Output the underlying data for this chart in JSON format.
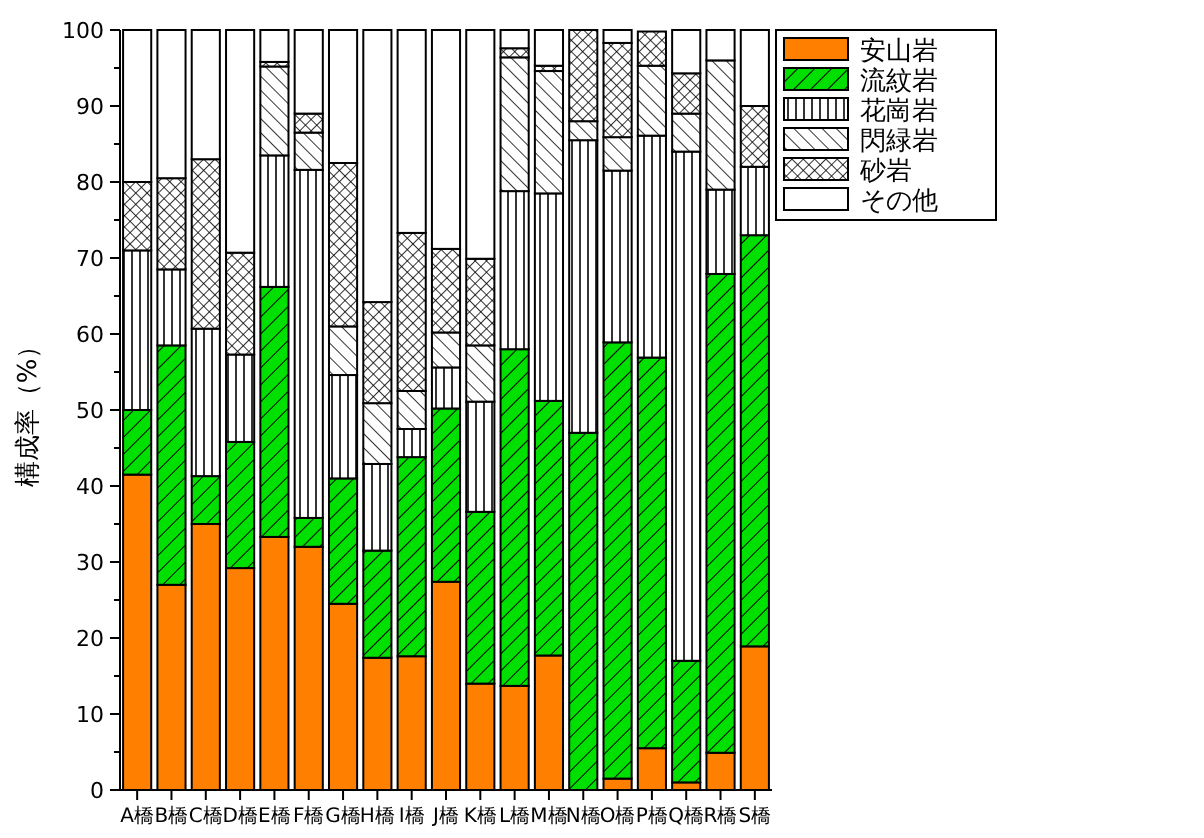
{
  "chart_data": {
    "type": "bar",
    "stacked": true,
    "ylabel": "構成率（%）",
    "categories": [
      "A橋",
      "B橋",
      "C橋",
      "D橋",
      "E橋",
      "F橋",
      "G橋",
      "H橋",
      "I橋",
      "J橋",
      "K橋",
      "L橋",
      "M橋",
      "N橋",
      "O橋",
      "P橋",
      "Q橋",
      "R橋",
      "S橋"
    ],
    "ylim": [
      0,
      100
    ],
    "yticks": [
      0,
      {
        "value": 5,
        "label": null
      },
      10,
      {
        "value": 15,
        "label": null
      },
      20,
      {
        "value": 25,
        "label": null
      },
      30,
      {
        "value": 35,
        "label": null
      },
      40,
      {
        "value": 45,
        "label": null
      },
      50,
      {
        "value": 55,
        "label": null
      },
      60,
      {
        "value": 65,
        "label": null
      },
      70,
      {
        "value": 75,
        "label": null
      },
      80,
      {
        "value": 85,
        "label": null
      },
      90,
      {
        "value": 95,
        "label": null
      },
      100
    ],
    "legend": "top right",
    "grid": false,
    "series": [
      {
        "name": "安山岩",
        "color": "#ff8000",
        "values": [
          41.5,
          27,
          35,
          29.2,
          33.3,
          32,
          24.5,
          17.4,
          17.6,
          27.4,
          14,
          13.7,
          17.7,
          0,
          1.5,
          5.5,
          1,
          4.9,
          18.9
        ]
      },
      {
        "name": "流紋岩",
        "color": "#00e000",
        "values": [
          8.5,
          31.5,
          6.3,
          16.6,
          32.9,
          3.8,
          16.5,
          14.1,
          26.2,
          22.8,
          22.6,
          44.3,
          33.5,
          47,
          57.4,
          51.4,
          16,
          63,
          54.1
        ]
      },
      {
        "name": "花崗岩",
        "color": "#ffffff",
        "values": [
          21,
          10,
          19.4,
          11.5,
          17.3,
          45.8,
          13.6,
          11.4,
          3.7,
          5.4,
          14.5,
          20.8,
          27.3,
          38.5,
          22.6,
          29.2,
          67,
          11.1,
          9
        ]
      },
      {
        "name": "閃緑岩",
        "color": "#ffffff",
        "values": [
          0,
          0,
          0,
          0,
          11.7,
          4.9,
          6.4,
          8,
          5,
          4.6,
          7.4,
          17.6,
          16.1,
          2.5,
          4.4,
          9.2,
          5,
          17,
          0
        ]
      },
      {
        "name": "砂岩",
        "color": "#ffffff",
        "values": [
          9,
          12,
          22.3,
          13.4,
          0.6,
          2.5,
          21.5,
          13.3,
          20.8,
          11,
          11.4,
          1.2,
          0.7,
          12,
          12.4,
          4.5,
          5.3,
          0,
          8
        ]
      },
      {
        "name": "その他",
        "color": "#ffffff",
        "values": [
          20,
          19.5,
          17,
          29.3,
          4.2,
          11,
          17.5,
          35.8,
          26.7,
          28.8,
          30.1,
          2.4,
          4.7,
          0,
          1.7,
          null,
          5.7,
          4,
          10
        ]
      }
    ]
  }
}
